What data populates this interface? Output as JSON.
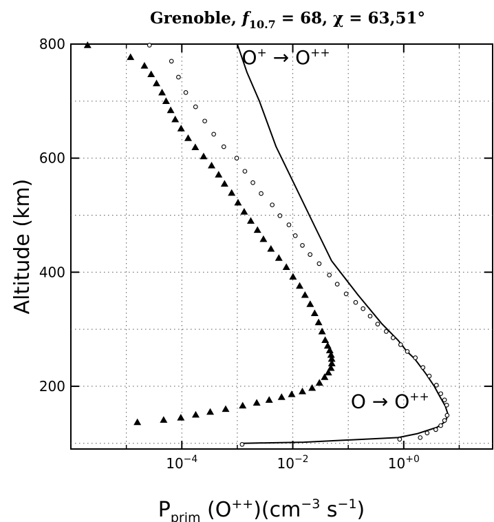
{
  "chart_data": {
    "type": "line",
    "title": "Grenoble, f10.7 = 68, χ = 63,51°",
    "title_parts": {
      "place": "Grenoble, ",
      "f": "f",
      "f_sub": "10.7",
      "f_rest": " = 68, ",
      "chi": "χ = 63,51°"
    },
    "xlabel": "Pprim (O++)(cm−3 s−1)",
    "xlabel_parts": {
      "p": "P",
      "p_sub": "prim",
      "rest": " (O",
      "sup1": "++",
      "rest2": ")(cm",
      "sup2": "−3",
      "rest3": " s",
      "sup3": "−1",
      "rest4": ")"
    },
    "ylabel": "Altitude (km)",
    "x_scale": "log",
    "xlim": [
      1e-06,
      40
    ],
    "ylim": [
      90,
      800
    ],
    "grid": true,
    "x_ticks": [
      {
        "value": 0.0001,
        "base": "10",
        "exp": "−4"
      },
      {
        "value": 0.01,
        "base": "10",
        "exp": "−2"
      },
      {
        "value": 1,
        "base": "10",
        "exp": "+0"
      }
    ],
    "y_ticks": [
      {
        "value": 200,
        "label": "200"
      },
      {
        "value": 400,
        "label": "400"
      },
      {
        "value": 600,
        "label": "600"
      },
      {
        "value": 800,
        "label": "800"
      }
    ],
    "annotations": [
      {
        "text_base": "O",
        "text_sup": "+",
        "arrow": " → ",
        "text_base2": "O",
        "text_sup2": "++",
        "x": 0.00752,
        "y": 765
      },
      {
        "text_base": "O",
        "arrow": " → ",
        "text_base2": "O",
        "text_sup2": "++",
        "x": 0.565,
        "y": 162
      }
    ],
    "series": [
      {
        "style": "solid-line",
        "color": "#000000",
        "x": [
          0.001,
          0.0015,
          0.0025,
          0.005,
          0.01,
          0.025,
          0.05,
          0.15,
          0.4,
          0.8,
          1.12,
          1.58,
          2.51,
          3.55,
          4.47,
          5.62,
          6.31,
          5.62,
          3.98,
          1.78,
          0.794,
          0.0158,
          0.00126
        ],
        "y": [
          800,
          750,
          700,
          620,
          560,
          480,
          420,
          360,
          310,
          280,
          262,
          248,
          222,
          200,
          182,
          165,
          150,
          138,
          128,
          117,
          110,
          102,
          100
        ]
      },
      {
        "style": "open-circle",
        "color": "#000000",
        "x": [
          2.61e-05,
          6.5e-05,
          8.7e-05,
          0.000118,
          0.000177,
          0.000259,
          0.000376,
          0.000571,
          0.000976,
          0.00137,
          0.00191,
          0.00269,
          0.00426,
          0.00587,
          0.00852,
          0.0111,
          0.0149,
          0.0205,
          0.0299,
          0.0456,
          0.0633,
          0.0917,
          0.136,
          0.185,
          0.248,
          0.339,
          0.483,
          0.642,
          0.879,
          1.16,
          1.62,
          2.22,
          2.89,
          3.88,
          4.65,
          5.44,
          5.94,
          6.05,
          5.44,
          4.64,
          3.78,
          2.64,
          1.98,
          0.845,
          0.00122
        ],
        "y": [
          798,
          770,
          742,
          715,
          690,
          665,
          642,
          620,
          600,
          577,
          557,
          538,
          518,
          499,
          483,
          464,
          447,
          431,
          415,
          395,
          379,
          362,
          347,
          336,
          323,
          309,
          296,
          285,
          273,
          261,
          250,
          233,
          218,
          202,
          187,
          176,
          167,
          149,
          140,
          131,
          124,
          118,
          110,
          107,
          98
        ]
      },
      {
        "style": "filled-triangle",
        "color": "#000000",
        "x": [
          2e-06,
          1.19e-05,
          2.12e-05,
          2.8e-05,
          3.5e-05,
          4.4e-05,
          5.2e-05,
          6.3e-05,
          7.6e-05,
          9.7e-05,
          0.00013,
          0.000175,
          0.000247,
          0.000344,
          0.000461,
          0.000589,
          0.000791,
          0.00103,
          0.00133,
          0.00175,
          0.00231,
          0.00296,
          0.00404,
          0.00561,
          0.00766,
          0.0101,
          0.0133,
          0.0166,
          0.0206,
          0.0248,
          0.0292,
          0.0337,
          0.0384,
          0.0426,
          0.0464,
          0.049,
          0.0503,
          0.0505,
          0.0486,
          0.0437,
          0.0375,
          0.0302,
          0.0223,
          0.0149,
          0.00956,
          0.00628,
          0.00375,
          0.00224,
          0.00125,
          0.000617,
          0.000325,
          0.000178,
          9.6e-05,
          4.7e-05,
          1.58e-05
        ],
        "y": [
          798,
          777,
          762,
          747,
          731,
          715,
          700,
          684,
          668,
          652,
          635,
          619,
          603,
          587,
          571,
          555,
          539,
          522,
          506,
          490,
          474,
          458,
          441,
          425,
          409,
          392,
          376,
          360,
          344,
          328,
          312,
          296,
          281,
          271,
          263,
          255,
          248,
          240,
          232,
          224,
          216,
          206,
          197,
          191,
          186,
          181,
          176,
          171,
          166,
          160,
          155,
          150,
          145,
          141,
          137
        ]
      }
    ]
  }
}
